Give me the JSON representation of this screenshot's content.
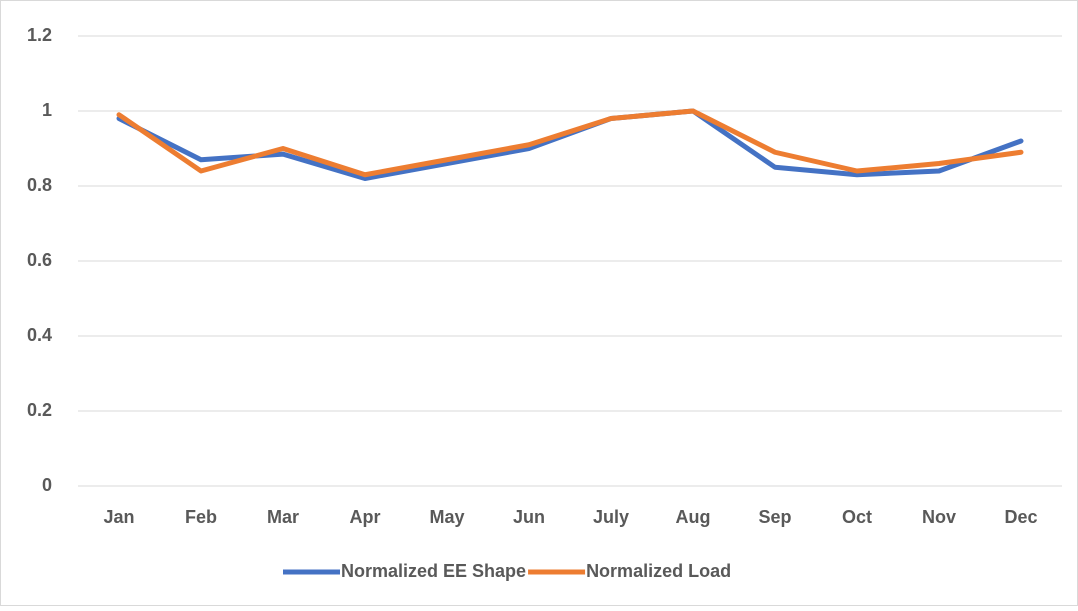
{
  "chart_data": {
    "type": "line",
    "categories": [
      "Jan",
      "Feb",
      "Mar",
      "Apr",
      "May",
      "Jun",
      "July",
      "Aug",
      "Sep",
      "Oct",
      "Nov",
      "Dec"
    ],
    "series": [
      {
        "name": "Normalized EE Shape",
        "color": "#4472c4",
        "values": [
          0.98,
          0.87,
          0.885,
          0.82,
          0.86,
          0.9,
          0.98,
          1.0,
          0.85,
          0.83,
          0.84,
          0.92
        ]
      },
      {
        "name": "Normalized Load",
        "color": "#ed7d31",
        "values": [
          0.99,
          0.84,
          0.9,
          0.83,
          0.87,
          0.91,
          0.98,
          1.0,
          0.89,
          0.84,
          0.86,
          0.89
        ]
      }
    ],
    "ylim": [
      0,
      1.2
    ],
    "yticks": [
      0,
      0.2,
      0.4,
      0.6,
      0.8,
      1,
      1.2
    ],
    "grid": true,
    "legend": "bottom"
  }
}
